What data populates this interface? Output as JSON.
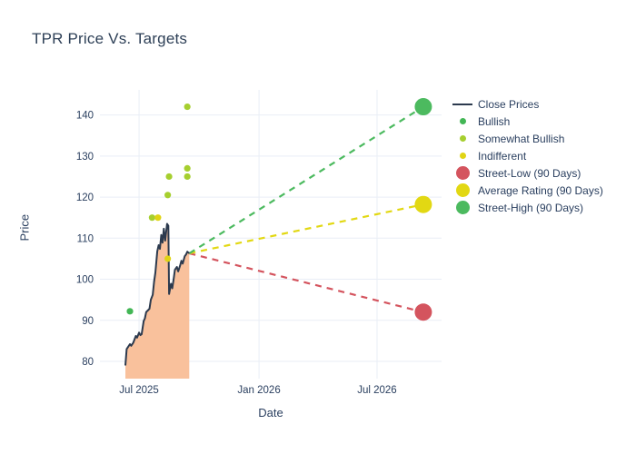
{
  "title": "TPR Price Vs. Targets",
  "colors": {
    "text": "#2a3f5f",
    "grid": "#e9eef6",
    "close_line": "#2c3a4e",
    "close_fill": "#f9c19c",
    "bullish": "#42b655",
    "somewhat_bullish": "#a6cf2f",
    "indifferent": "#e0d414",
    "street_low": "#d4545e",
    "average_rating": "#e2d813",
    "street_high": "#4cba5f"
  },
  "legend": {
    "items": [
      {
        "key": "close-prices",
        "label": "Close Prices",
        "icon": "line",
        "color": "#2c3a4e"
      },
      {
        "key": "bullish",
        "label": "Bullish",
        "icon": "dot",
        "color": "#42b655"
      },
      {
        "key": "somewhat-bullish",
        "label": "Somewhat Bullish",
        "icon": "dot",
        "color": "#a6cf2f"
      },
      {
        "key": "indifferent",
        "label": "Indifferent",
        "icon": "dot",
        "color": "#e0d414"
      },
      {
        "key": "street-low",
        "label": "Street-Low (90 Days)",
        "icon": "bigdot",
        "color": "#d4545e"
      },
      {
        "key": "average-rating",
        "label": "Average Rating (90 Days)",
        "icon": "bigdot",
        "color": "#e2d813"
      },
      {
        "key": "street-high",
        "label": "Street-High (90 Days)",
        "icon": "bigdot",
        "color": "#4cba5f"
      }
    ]
  },
  "chart_data": {
    "type": "line",
    "title": "TPR Price Vs. Targets",
    "xlabel": "Date",
    "ylabel": "Price",
    "grid": true,
    "legend_position": "right",
    "x_range": [
      "2025-05-02",
      "2026-10-08"
    ],
    "y_range": [
      75.8,
      146.1
    ],
    "y_ticks": [
      80,
      90,
      100,
      110,
      120,
      130,
      140
    ],
    "x_ticks": [
      {
        "date": "2025-07-01",
        "label": "Jul 2025"
      },
      {
        "date": "2026-01-01",
        "label": "Jan 2026"
      },
      {
        "date": "2026-07-01",
        "label": "Jul 2026"
      }
    ],
    "close_prices": {
      "name": "Close Prices",
      "points": [
        [
          "2025-06-10",
          79.0
        ],
        [
          "2025-06-12",
          83.0
        ],
        [
          "2025-06-14",
          83.5
        ],
        [
          "2025-06-17",
          84.2
        ],
        [
          "2025-06-19",
          83.8
        ],
        [
          "2025-06-22",
          84.5
        ],
        [
          "2025-06-26",
          86.2
        ],
        [
          "2025-06-28",
          85.8
        ],
        [
          "2025-07-01",
          87.0
        ],
        [
          "2025-07-03",
          86.4
        ],
        [
          "2025-07-05",
          86.6
        ],
        [
          "2025-07-08",
          89.8
        ],
        [
          "2025-07-10",
          90.5
        ],
        [
          "2025-07-12",
          92.0
        ],
        [
          "2025-07-15",
          92.5
        ],
        [
          "2025-07-17",
          92.8
        ],
        [
          "2025-07-19",
          95.0
        ],
        [
          "2025-07-22",
          96.2
        ],
        [
          "2025-07-24",
          99.4
        ],
        [
          "2025-07-26",
          101.6
        ],
        [
          "2025-07-29",
          106.8
        ],
        [
          "2025-07-31",
          108.3
        ],
        [
          "2025-08-02",
          107.4
        ],
        [
          "2025-08-04",
          110.8
        ],
        [
          "2025-08-06",
          108.9
        ],
        [
          "2025-08-08",
          112.3
        ],
        [
          "2025-08-10",
          109.4
        ],
        [
          "2025-08-13",
          113.5
        ],
        [
          "2025-08-15",
          113.0
        ],
        [
          "2025-08-16",
          96.4
        ],
        [
          "2025-08-19",
          98.9
        ],
        [
          "2025-08-21",
          97.8
        ],
        [
          "2025-08-23",
          100.0
        ],
        [
          "2025-08-25",
          102.3
        ],
        [
          "2025-08-28",
          103.0
        ],
        [
          "2025-08-30",
          101.9
        ],
        [
          "2025-09-02",
          103.4
        ],
        [
          "2025-09-04",
          104.5
        ],
        [
          "2025-09-06",
          103.8
        ],
        [
          "2025-09-09",
          105.6
        ],
        [
          "2025-09-11",
          106.0
        ],
        [
          "2025-09-13",
          106.7
        ],
        [
          "2025-09-16",
          106.3
        ]
      ]
    },
    "ratings": [
      {
        "name": "Bullish",
        "key": "bullish",
        "color": "#42b655",
        "points": [
          [
            "2025-06-17",
            92.2
          ]
        ]
      },
      {
        "name": "Somewhat Bullish",
        "key": "somewhat-bullish",
        "color": "#a6cf2f",
        "points": [
          [
            "2025-07-21",
            115.0
          ],
          [
            "2025-08-14",
            120.5
          ],
          [
            "2025-08-16",
            125.0
          ],
          [
            "2025-09-13",
            125.0
          ],
          [
            "2025-09-13",
            127.0
          ],
          [
            "2025-09-13",
            142.0
          ]
        ]
      },
      {
        "name": "Indifferent",
        "key": "indifferent",
        "color": "#e0d414",
        "points": [
          [
            "2025-07-30",
            115.0
          ],
          [
            "2025-08-14",
            105.0
          ]
        ]
      }
    ],
    "targets": {
      "date": "2026-09-10",
      "projection_from": [
        "2025-09-16",
        106.3
      ],
      "items": [
        {
          "name": "Street-Low (90 Days)",
          "key": "street-low",
          "price": 92.0,
          "color": "#d4545e"
        },
        {
          "name": "Average Rating (90 Days)",
          "key": "average-rating",
          "price": 118.2,
          "color": "#e2d813"
        },
        {
          "name": "Street-High (90 Days)",
          "key": "street-high",
          "price": 142.0,
          "color": "#4cba5f"
        }
      ]
    }
  }
}
